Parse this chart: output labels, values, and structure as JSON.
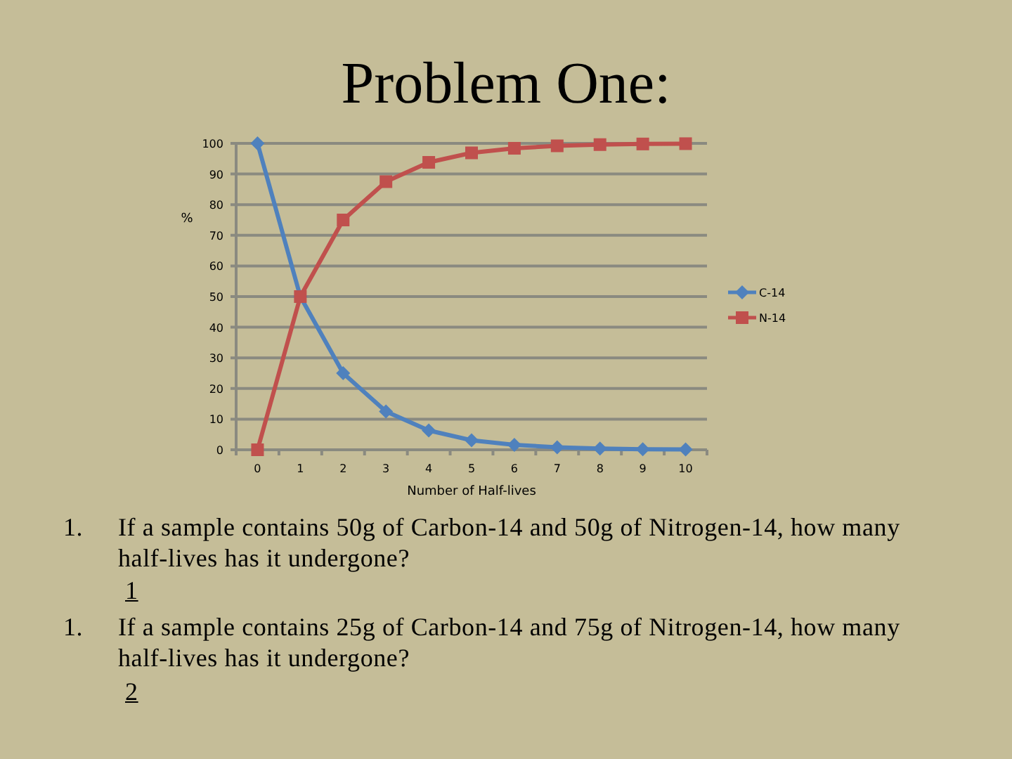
{
  "chart_data": {
    "type": "line",
    "title": "Problem One:",
    "xlabel": "Number of Half-lives",
    "ylabel": "%",
    "categories": [
      "0",
      "1",
      "2",
      "3",
      "4",
      "5",
      "6",
      "7",
      "8",
      "9",
      "10"
    ],
    "series": [
      {
        "name": "C-14",
        "color": "#4f81bd",
        "marker": "diamond",
        "values": [
          100,
          50,
          25,
          12.5,
          6.3,
          3.1,
          1.6,
          0.8,
          0.4,
          0.2,
          0.1
        ]
      },
      {
        "name": "N-14",
        "color": "#c0504d",
        "marker": "square",
        "values": [
          0,
          50,
          75,
          87.5,
          93.8,
          96.9,
          98.4,
          99.2,
          99.6,
          99.8,
          99.9
        ]
      }
    ],
    "ylim": [
      0,
      100
    ],
    "yticks": [
      0,
      10,
      20,
      30,
      40,
      50,
      60,
      70,
      80,
      90,
      100
    ],
    "grid": "y",
    "legend": "right",
    "line_style": "solid",
    "annotations": [
      "1.",
      "If a sample contains 50g of Carbon-14 and 50g of Nitrogen-14, how many half-lives has it undergone?",
      "1",
      "1.",
      "If a sample contains 25g of Carbon-14 and 75g of Nitrogen-14, how many half-lives has it undergone?",
      "2"
    ]
  }
}
